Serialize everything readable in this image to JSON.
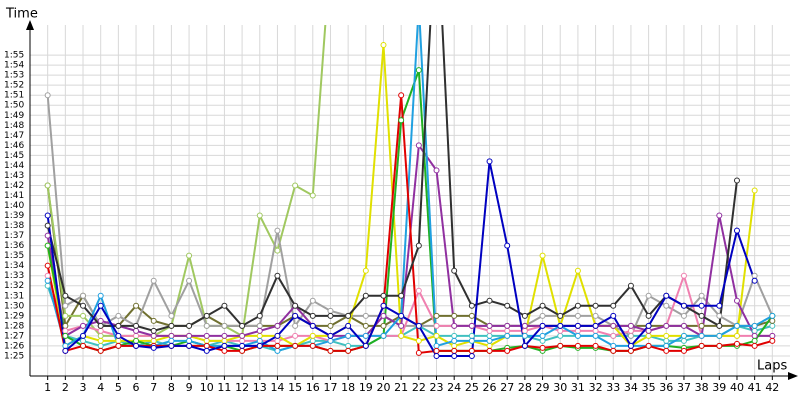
{
  "chart_data": {
    "type": "line",
    "y_label": "Time",
    "x_label": "Laps",
    "xlim": [
      0,
      43
    ],
    "ylim": [
      83,
      118
    ],
    "grid": true,
    "xticks": [
      1,
      2,
      3,
      4,
      5,
      6,
      7,
      8,
      9,
      10,
      11,
      12,
      13,
      14,
      15,
      16,
      17,
      18,
      19,
      20,
      21,
      22,
      23,
      24,
      25,
      26,
      27,
      28,
      29,
      30,
      31,
      32,
      33,
      34,
      35,
      36,
      37,
      38,
      39,
      40,
      41,
      42
    ],
    "yticks": [
      {
        "value": 85,
        "label": "1:25"
      },
      {
        "value": 86,
        "label": "1:26"
      },
      {
        "value": 87,
        "label": "1:27"
      },
      {
        "value": 88,
        "label": "1:28"
      },
      {
        "value": 89,
        "label": "1:29"
      },
      {
        "value": 90,
        "label": "1:30"
      },
      {
        "value": 91,
        "label": "1:31"
      },
      {
        "value": 92,
        "label": "1:32"
      },
      {
        "value": 93,
        "label": "1:33"
      },
      {
        "value": 94,
        "label": "1:34"
      },
      {
        "value": 95,
        "label": "1:35"
      },
      {
        "value": 96,
        "label": "1:36"
      },
      {
        "value": 97,
        "label": "1:37"
      },
      {
        "value": 98,
        "label": "1:38"
      },
      {
        "value": 99,
        "label": "1:39"
      },
      {
        "value": 100,
        "label": "1:40"
      },
      {
        "value": 101,
        "label": "1:41"
      },
      {
        "value": 102,
        "label": "1:42"
      },
      {
        "value": 103,
        "label": "1:43"
      },
      {
        "value": 104,
        "label": "1:44"
      },
      {
        "value": 105,
        "label": "1:45"
      },
      {
        "value": 106,
        "label": "1:46"
      },
      {
        "value": 107,
        "label": "1:47"
      },
      {
        "value": 108,
        "label": "1:48"
      },
      {
        "value": 109,
        "label": "1:49"
      },
      {
        "value": 110,
        "label": "1:50"
      },
      {
        "value": 111,
        "label": "1:51"
      },
      {
        "value": 112,
        "label": "1:52"
      },
      {
        "value": 113,
        "label": "1:53"
      },
      {
        "value": 114,
        "label": "1:54"
      },
      {
        "value": 115,
        "label": "1:55"
      }
    ],
    "x": [
      1,
      2,
      3,
      4,
      5,
      6,
      7,
      8,
      9,
      10,
      11,
      12,
      13,
      14,
      15,
      16,
      17,
      18,
      19,
      20,
      21,
      22,
      23,
      24,
      25,
      26,
      27,
      28,
      29,
      30,
      31,
      32,
      33,
      34,
      35,
      36,
      37,
      38,
      39,
      40,
      41,
      42
    ],
    "series": [
      {
        "color": "#40c0c0",
        "values": [
          92,
          87,
          86.5,
          86,
          86.5,
          86,
          86.5,
          86,
          86,
          86,
          86.5,
          86,
          86,
          85.5,
          86,
          86.5,
          86.5,
          86,
          86,
          87,
          87,
          88,
          87,
          87,
          87,
          87,
          87,
          87,
          86.5,
          87,
          87,
          87,
          87,
          87,
          87,
          86.5,
          86.5,
          87,
          87,
          88,
          87.5,
          88
        ]
      },
      {
        "color": "#707030",
        "values": [
          102,
          88,
          91,
          88,
          88,
          90,
          88.5,
          88,
          88,
          89,
          88,
          88,
          88,
          88,
          89,
          88,
          88,
          89,
          88,
          88,
          89,
          88,
          89,
          89,
          89,
          88,
          88,
          88,
          88,
          88,
          88,
          88,
          88,
          88,
          88,
          88,
          88,
          88,
          88,
          88,
          88,
          88.5
        ]
      },
      {
        "color": "#a0c860",
        "values": [
          102,
          89,
          89,
          87,
          87,
          87,
          87,
          88,
          95,
          88,
          88,
          87,
          99,
          95.5,
          102,
          101,
          125,
          null,
          null,
          null,
          null,
          null,
          null,
          null,
          null,
          null,
          null,
          null,
          null,
          null,
          null,
          null,
          null,
          null,
          null,
          null,
          null,
          null,
          null,
          null,
          null,
          null
        ]
      },
      {
        "color": "#a0a0a0",
        "values": [
          111,
          90,
          91,
          88,
          89,
          88,
          92.5,
          89,
          92.5,
          88,
          88,
          88,
          88,
          97.5,
          88,
          90.5,
          89.5,
          89,
          89,
          89,
          88,
          88,
          88,
          88,
          88,
          88,
          88,
          88,
          89,
          89,
          89,
          89,
          88,
          87,
          91,
          90,
          89,
          91,
          89,
          88,
          93,
          89
        ]
      },
      {
        "color": "#f080b0",
        "values": [
          93,
          87.5,
          88,
          87.5,
          87,
          87,
          87,
          87,
          87,
          86.5,
          86.5,
          86.5,
          86.5,
          86.5,
          87,
          87,
          86.5,
          87,
          87,
          87,
          87,
          91.5,
          88,
          88,
          88,
          87.5,
          87.5,
          87.5,
          88,
          87.5,
          87.5,
          87.5,
          87,
          87.5,
          87.5,
          88,
          93,
          87,
          87,
          87,
          87,
          87
        ]
      },
      {
        "color": "#e0e000",
        "values": [
          96,
          86,
          87,
          86.5,
          86.5,
          86.5,
          86.5,
          87,
          87,
          86.5,
          86.5,
          87,
          87,
          87,
          86,
          87,
          87,
          88,
          93.5,
          116,
          87,
          86.5,
          87,
          86,
          86.5,
          86,
          87,
          87,
          95,
          88,
          93.5,
          88,
          88,
          86,
          87,
          87,
          87,
          87,
          87,
          87,
          101.5,
          null
        ]
      },
      {
        "color": "#9030a0",
        "values": [
          97,
          87,
          88,
          88.5,
          88,
          87.5,
          87,
          87,
          87,
          87,
          87,
          87,
          87.5,
          88,
          90,
          88,
          87,
          87,
          87,
          89,
          88,
          106,
          103.5,
          88,
          88,
          88,
          88,
          88,
          88,
          88,
          88,
          88,
          88,
          88,
          87.5,
          88,
          88,
          87,
          99,
          90.5,
          87,
          87
        ]
      },
      {
        "color": "#20b020",
        "values": [
          96,
          87,
          86,
          85.5,
          86,
          86.5,
          86,
          86,
          86.5,
          86,
          86,
          85.5,
          86,
          86,
          86,
          86,
          85.5,
          85.5,
          86,
          87,
          108.5,
          113.5,
          85.5,
          85.5,
          85.5,
          85.5,
          85.8,
          86,
          85.5,
          86,
          85.8,
          85.8,
          85.5,
          85.5,
          86,
          86,
          85.8,
          86,
          86,
          86,
          86.5,
          89
        ]
      },
      {
        "color": "#20a0e0",
        "values": [
          92.5,
          86,
          87,
          91,
          86,
          86,
          86,
          86.5,
          86.5,
          86,
          86,
          86,
          86.5,
          85.5,
          86,
          86,
          86.5,
          87,
          87,
          87,
          89,
          120,
          86,
          86.5,
          86.5,
          86.5,
          87,
          87,
          87,
          88,
          87,
          87,
          86,
          86,
          86,
          86,
          87,
          87,
          87,
          88,
          88,
          89
        ]
      },
      {
        "color": "#e00000",
        "values": [
          94,
          85.5,
          86,
          85.5,
          86,
          86,
          86,
          86,
          86,
          86,
          85.5,
          85.5,
          86,
          86,
          86,
          86,
          85.5,
          85.5,
          86,
          90,
          111,
          85.3,
          85.5,
          85.5,
          85.5,
          85.5,
          85.5,
          86,
          85.8,
          86,
          86,
          86,
          85.5,
          85.5,
          86,
          85.5,
          85.5,
          86,
          86,
          86.2,
          86,
          86.5
        ]
      },
      {
        "color": "#303030",
        "values": [
          98,
          91,
          90,
          88,
          88,
          88,
          87.5,
          88,
          88,
          89,
          90,
          88,
          89,
          93,
          90,
          89,
          89,
          89,
          91,
          91,
          91,
          96,
          130,
          93.5,
          90,
          90.5,
          90,
          89,
          90,
          89,
          90,
          90,
          90,
          92,
          89,
          91,
          90,
          89,
          88,
          102.5,
          null,
          null
        ]
      },
      {
        "color": "#0000c0",
        "values": [
          99,
          85.5,
          87,
          90,
          87,
          86,
          85.8,
          86,
          86,
          85.5,
          86,
          86,
          86,
          87,
          89,
          88,
          87,
          88,
          86,
          90,
          89,
          88,
          85,
          85,
          85,
          104.4,
          96,
          86,
          88,
          88,
          88,
          88,
          89,
          86,
          88,
          91,
          90,
          90,
          90,
          97.5,
          92.5,
          null
        ]
      }
    ]
  }
}
